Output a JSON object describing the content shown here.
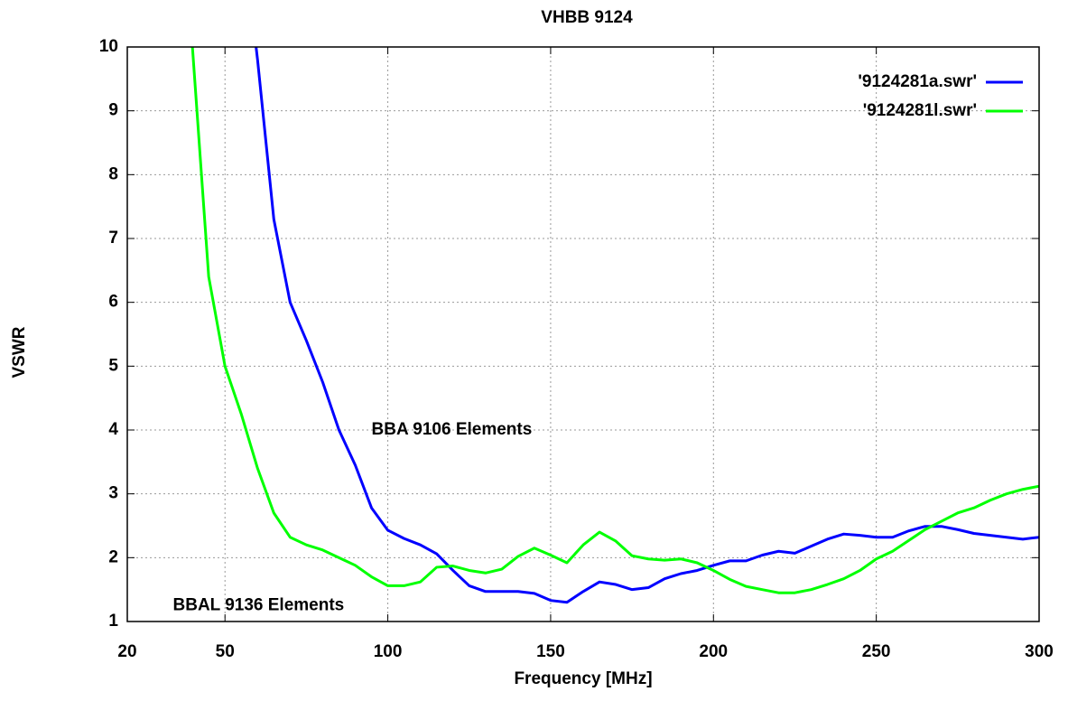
{
  "chart_data": {
    "type": "line",
    "title": "VHBB 9124",
    "xlabel": "Frequency [MHz]",
    "ylabel": "VSWR",
    "x": [
      40,
      45,
      50,
      55,
      60,
      65,
      70,
      75,
      80,
      85,
      90,
      95,
      100,
      105,
      110,
      115,
      120,
      125,
      130,
      135,
      140,
      145,
      150,
      155,
      160,
      165,
      170,
      175,
      180,
      185,
      190,
      195,
      200,
      205,
      210,
      215,
      220,
      225,
      230,
      235,
      240,
      245,
      250,
      255,
      260,
      265,
      270,
      275,
      280,
      285,
      290,
      295,
      300
    ],
    "series": [
      {
        "name": "'9124281a.swr'",
        "color": "#0000ff",
        "values": [
          null,
          null,
          null,
          12,
          9.8,
          7.3,
          6.0,
          5.4,
          4.75,
          4.0,
          3.45,
          2.78,
          2.43,
          2.3,
          2.2,
          2.06,
          1.8,
          1.56,
          1.47,
          1.47,
          1.47,
          1.44,
          1.33,
          1.3,
          1.47,
          1.62,
          1.58,
          1.5,
          1.53,
          1.67,
          1.75,
          1.8,
          1.88,
          1.95,
          1.95,
          2.04,
          2.1,
          2.07,
          2.18,
          2.29,
          2.37,
          2.35,
          2.32,
          2.32,
          2.42,
          2.49,
          2.49,
          2.44,
          2.38,
          2.35,
          2.32,
          2.29,
          2.32
        ]
      },
      {
        "name": "'9124281l.swr'",
        "color": "#00ff00",
        "values": [
          10,
          6.4,
          5.0,
          4.25,
          3.4,
          2.7,
          2.32,
          2.2,
          2.12,
          2.0,
          1.88,
          1.7,
          1.56,
          1.56,
          1.62,
          1.85,
          1.87,
          1.8,
          1.76,
          1.82,
          2.02,
          2.15,
          2.04,
          1.92,
          2.2,
          2.4,
          2.26,
          2.03,
          1.98,
          1.96,
          1.98,
          1.92,
          1.8,
          1.66,
          1.55,
          1.5,
          1.45,
          1.45,
          1.5,
          1.58,
          1.67,
          1.8,
          1.98,
          2.1,
          2.27,
          2.44,
          2.57,
          2.7,
          2.78,
          2.9,
          3.0,
          3.07,
          3.12
        ]
      }
    ],
    "annotations": [
      {
        "text": "BBA 9106 Elements",
        "x": 95,
        "y": 4.0
      },
      {
        "text": "BBAL 9136 Elements",
        "x": 34,
        "y": 1.25
      }
    ],
    "xlim": [
      20,
      300
    ],
    "xticks": [
      20,
      50,
      100,
      150,
      200,
      250,
      300
    ],
    "ylim": [
      1,
      10
    ],
    "yticks": [
      1,
      2,
      3,
      4,
      5,
      6,
      7,
      8,
      9,
      10
    ],
    "grid": true,
    "legend": "top-right"
  }
}
